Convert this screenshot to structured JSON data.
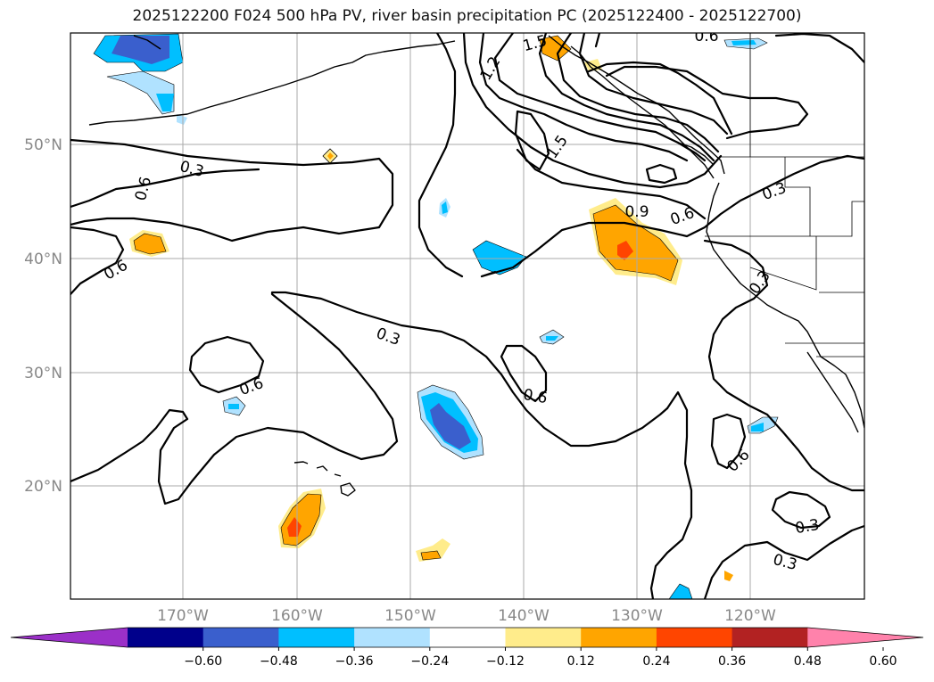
{
  "title": "2025122200 F024 500 hPa PV, river basin precipitation PC (2025122400 - 2025122700)",
  "lat_labels": [
    "50°N",
    "40°N",
    "30°N",
    "20°N"
  ],
  "lon_labels": [
    "170°W",
    "160°W",
    "150°W",
    "140°W",
    "130°W",
    "120°W"
  ],
  "contour_labels": [
    "0.3",
    "0.6",
    "0.6",
    "1.2",
    "1.5",
    "1.5",
    "0.6",
    "0.9",
    "0.6",
    "0.3",
    "0.3",
    "0.3",
    "0.6",
    "0.6",
    "0.6",
    "0.3",
    "0.3"
  ],
  "colorbar": {
    "colors": [
      "#9b30c8",
      "#00008b",
      "#3a5fcd",
      "#00bfff",
      "#b0e2ff",
      "#ffffff",
      "#ffec8b",
      "#ffa500",
      "#ff4500",
      "#b22222",
      "#ff82ab"
    ],
    "ticks": [
      "−0.60",
      "−0.48",
      "−0.36",
      "−0.24",
      "−0.12",
      "0.12",
      "0.24",
      "0.36",
      "0.48",
      "0.60"
    ]
  }
}
